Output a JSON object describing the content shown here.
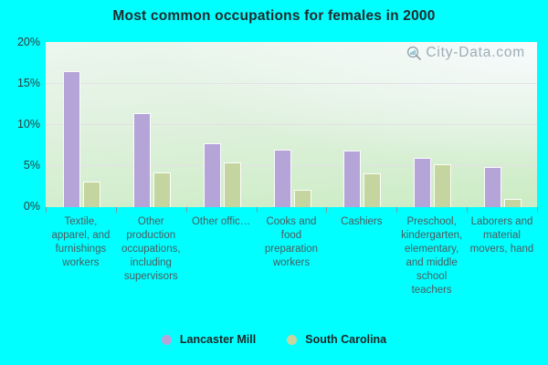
{
  "title": "Most common occupations for females in 2000",
  "watermark": "City-Data.com",
  "chart_data": {
    "type": "bar",
    "title": "Most common occupations for females in 2000",
    "categories": [
      "Textile, apparel, and furnishings workers",
      "Other production occupations, including supervisors",
      "Other offic…",
      "Cooks and food preparation workers",
      "Cashiers",
      "Preschool, kindergarten, elementary, and middle school teachers",
      "Laborers and material movers, hand"
    ],
    "series": [
      {
        "name": "Lancaster Mill",
        "color": "#b5a4d8",
        "values": [
          16.6,
          11.4,
          7.8,
          7.0,
          6.9,
          6.0,
          4.9
        ]
      },
      {
        "name": "South Carolina",
        "color": "#c5d5a0",
        "values": [
          3.1,
          4.2,
          5.5,
          2.1,
          4.1,
          5.2,
          1.0
        ]
      }
    ],
    "xlabel": "",
    "ylabel": "",
    "ylim": [
      0,
      20
    ],
    "yticks": [
      "0%",
      "5%",
      "10%",
      "15%",
      "20%"
    ],
    "ytick_step": 5,
    "grid": true,
    "legend_position": "bottom",
    "plot_background": "green-white gradient",
    "page_background": "#00ffff"
  }
}
